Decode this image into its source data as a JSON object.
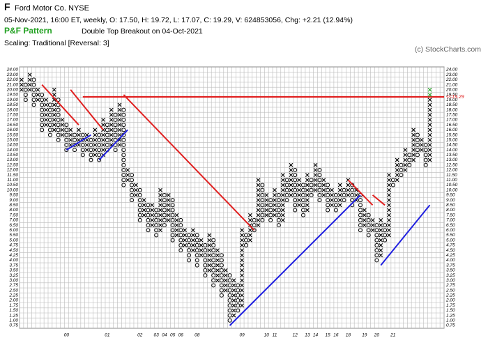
{
  "header": {
    "symbol": "F",
    "name": "Ford Motor Co.  NYSE",
    "quote": "05-Nov-2021, 16:00 ET, weekly, O: 17.50, H: 19.72, L: 17.07, C: 19.29, V: 624853056, Chg: +2.21 (12.94%)",
    "pattern_title": "P&F Pattern",
    "pattern": "Double Top Breakout on 04-Oct-2021",
    "scaling": "Scaling: Traditional [Reversal: 3]",
    "copyright": "(c) StockCharts.com"
  },
  "chart_data": {
    "type": "pnf",
    "first_column_type": "X",
    "slots": 104,
    "yticks": [
      {
        "value": 24,
        "label": "24.00"
      },
      {
        "value": 23,
        "label": "23.00"
      },
      {
        "value": 22,
        "label": "22.00"
      },
      {
        "value": 21,
        "label": "21.00"
      },
      {
        "value": 20,
        "label": "20.00"
      },
      {
        "value": 19.5,
        "label": "19.50"
      },
      {
        "value": 19,
        "label": "19.00"
      },
      {
        "value": 18.5,
        "label": "18.50"
      },
      {
        "value": 18,
        "label": "18.00"
      },
      {
        "value": 17.5,
        "label": "17.50"
      },
      {
        "value": 17,
        "label": "17.00"
      },
      {
        "value": 16.5,
        "label": "16.50"
      },
      {
        "value": 16,
        "label": "16.00"
      },
      {
        "value": 15.5,
        "label": "15.50"
      },
      {
        "value": 15,
        "label": "15.00"
      },
      {
        "value": 14.5,
        "label": "14.50"
      },
      {
        "value": 14,
        "label": "14.00"
      },
      {
        "value": 13.5,
        "label": "13.50"
      },
      {
        "value": 13,
        "label": "13.00"
      },
      {
        "value": 12.5,
        "label": "12.50"
      },
      {
        "value": 12,
        "label": "12.00"
      },
      {
        "value": 11.5,
        "label": "11.50"
      },
      {
        "value": 11,
        "label": "11.00"
      },
      {
        "value": 10.5,
        "label": "10.50"
      },
      {
        "value": 10,
        "label": "10.00"
      },
      {
        "value": 9.5,
        "label": "9.50"
      },
      {
        "value": 9,
        "label": "9.00"
      },
      {
        "value": 8.5,
        "label": "8.50"
      },
      {
        "value": 8,
        "label": "8.00"
      },
      {
        "value": 7.5,
        "label": "7.50"
      },
      {
        "value": 7,
        "label": "7.00"
      },
      {
        "value": 6.5,
        "label": "6.50"
      },
      {
        "value": 6,
        "label": "6.00"
      },
      {
        "value": 5.5,
        "label": "5.50"
      },
      {
        "value": 5,
        "label": "5.00"
      },
      {
        "value": 4.75,
        "label": "4.75"
      },
      {
        "value": 4.5,
        "label": "4.50"
      },
      {
        "value": 4.25,
        "label": "4.25"
      },
      {
        "value": 4,
        "label": "4.00"
      },
      {
        "value": 3.75,
        "label": "3.75"
      },
      {
        "value": 3.5,
        "label": "3.50"
      },
      {
        "value": 3.25,
        "label": "3.25"
      },
      {
        "value": 3,
        "label": "3.00"
      },
      {
        "value": 2.75,
        "label": "2.75"
      },
      {
        "value": 2.5,
        "label": "2.50"
      },
      {
        "value": 2.25,
        "label": "2.25"
      },
      {
        "value": 2,
        "label": "2.00"
      },
      {
        "value": 1.75,
        "label": "1.75"
      },
      {
        "value": 1.5,
        "label": "1.50"
      },
      {
        "value": 1.25,
        "label": "1.25"
      },
      {
        "value": 1,
        "label": "1.00"
      },
      {
        "value": 0.75,
        "label": "0.75"
      }
    ],
    "columns": [
      {
        "low": 20,
        "high": 22
      },
      {
        "low": 19,
        "high": 21
      },
      {
        "low": 20,
        "high": 23
      },
      {
        "low": 18.5,
        "high": 22
      },
      {
        "low": 19,
        "high": 20
      },
      {
        "low": 16,
        "high": 19.5
      },
      {
        "low": 16.5,
        "high": 19
      },
      {
        "low": 15.5,
        "high": 18.5
      },
      {
        "low": 16,
        "high": 20
      },
      {
        "low": 15,
        "high": 19
      },
      {
        "low": 15.5,
        "high": 17
      },
      {
        "low": 14,
        "high": 16.5
      },
      {
        "low": 14.5,
        "high": 16
      },
      {
        "low": 14,
        "high": 15.5
      },
      {
        "low": 14.5,
        "high": 16
      },
      {
        "low": 13.5,
        "high": 15.5
      },
      {
        "low": 14,
        "high": 15.5
      },
      {
        "low": 13,
        "high": 15
      },
      {
        "low": 13.5,
        "high": 16
      },
      {
        "low": 13,
        "high": 15.5
      },
      {
        "low": 13.5,
        "high": 17
      },
      {
        "low": 14,
        "high": 16.5
      },
      {
        "low": 14.5,
        "high": 18
      },
      {
        "low": 14,
        "high": 17.5
      },
      {
        "low": 14.5,
        "high": 18.5
      },
      {
        "low": 10.5,
        "high": 18
      },
      {
        "low": 11,
        "high": 12
      },
      {
        "low": 9,
        "high": 11.5
      },
      {
        "low": 9.5,
        "high": 10.5
      },
      {
        "low": 7,
        "high": 10
      },
      {
        "low": 7.5,
        "high": 9
      },
      {
        "low": 6,
        "high": 8.5
      },
      {
        "low": 6.5,
        "high": 8.5
      },
      {
        "low": 5.5,
        "high": 8
      },
      {
        "low": 6,
        "high": 10
      },
      {
        "low": 6.5,
        "high": 9.5
      },
      {
        "low": 7,
        "high": 9.5
      },
      {
        "low": 5,
        "high": 9
      },
      {
        "low": 5.5,
        "high": 7.5
      },
      {
        "low": 4.5,
        "high": 7
      },
      {
        "low": 4.75,
        "high": 6
      },
      {
        "low": 4,
        "high": 5.5
      },
      {
        "low": 4.5,
        "high": 6
      },
      {
        "low": 3.75,
        "high": 5.5
      },
      {
        "low": 4.25,
        "high": 5
      },
      {
        "low": 3.25,
        "high": 4.75
      },
      {
        "low": 3.5,
        "high": 5.5
      },
      {
        "low": 2.75,
        "high": 5
      },
      {
        "low": 3,
        "high": 4.5
      },
      {
        "low": 2.25,
        "high": 4.25
      },
      {
        "low": 2.5,
        "high": 3.5
      },
      {
        "low": 1,
        "high": 3.25
      },
      {
        "low": 1.25,
        "high": 3
      },
      {
        "low": 1.5,
        "high": 2.75
      },
      {
        "low": 1.75,
        "high": 6
      },
      {
        "low": 4.75,
        "high": 5.5
      },
      {
        "low": 5,
        "high": 7.5
      },
      {
        "low": 6,
        "high": 7
      },
      {
        "low": 6.5,
        "high": 11
      },
      {
        "low": 7,
        "high": 10.5
      },
      {
        "low": 7.5,
        "high": 9.5
      },
      {
        "low": 7,
        "high": 9
      },
      {
        "low": 7.5,
        "high": 10
      },
      {
        "low": 6.5,
        "high": 9.5
      },
      {
        "low": 7,
        "high": 11.5
      },
      {
        "low": 9,
        "high": 11
      },
      {
        "low": 9.5,
        "high": 12.5
      },
      {
        "low": 8,
        "high": 12
      },
      {
        "low": 8.5,
        "high": 11
      },
      {
        "low": 7.5,
        "high": 10.5
      },
      {
        "low": 8,
        "high": 11.5
      },
      {
        "low": 9.5,
        "high": 11
      },
      {
        "low": 10,
        "high": 12.5
      },
      {
        "low": 9,
        "high": 12
      },
      {
        "low": 9.5,
        "high": 11
      },
      {
        "low": 8,
        "high": 10.5
      },
      {
        "low": 8.5,
        "high": 10
      },
      {
        "low": 8,
        "high": 9.5
      },
      {
        "low": 8.5,
        "high": 10.5
      },
      {
        "low": 9,
        "high": 10
      },
      {
        "low": 9.5,
        "high": 11
      },
      {
        "low": 8.5,
        "high": 10.5
      },
      {
        "low": 9,
        "high": 10
      },
      {
        "low": 6,
        "high": 9.5
      },
      {
        "low": 6.5,
        "high": 8
      },
      {
        "low": 5.5,
        "high": 7.5
      },
      {
        "low": 6,
        "high": 7
      },
      {
        "low": 4,
        "high": 6.5
      },
      {
        "low": 4.25,
        "high": 7
      },
      {
        "low": 5,
        "high": 6.5
      },
      {
        "low": 5.5,
        "high": 11.5
      },
      {
        "low": 10.5,
        "high": 11
      },
      {
        "low": 11,
        "high": 13
      },
      {
        "low": 11.5,
        "high": 12.5
      },
      {
        "low": 12,
        "high": 14
      },
      {
        "low": 12.5,
        "high": 13.5
      },
      {
        "low": 13,
        "high": 16
      },
      {
        "low": 13.5,
        "high": 15.5
      },
      {
        "low": 14,
        "high": 15
      },
      {
        "low": 12.5,
        "high": 14.5
      },
      {
        "low": 13,
        "high": 20
      }
    ],
    "year_labels": [
      {
        "column": 11,
        "label": "00"
      },
      {
        "column": 21,
        "label": "01"
      },
      {
        "column": 29,
        "label": "02"
      },
      {
        "column": 33,
        "label": "03"
      },
      {
        "column": 35,
        "label": "04"
      },
      {
        "column": 37,
        "label": "05"
      },
      {
        "column": 39,
        "label": "06"
      },
      {
        "column": 43,
        "label": "08"
      },
      {
        "column": 54,
        "label": "09"
      },
      {
        "column": 60,
        "label": "10"
      },
      {
        "column": 62,
        "label": "11"
      },
      {
        "column": 67,
        "label": "12"
      },
      {
        "column": 70,
        "label": "13"
      },
      {
        "column": 72,
        "label": "14"
      },
      {
        "column": 75,
        "label": "15"
      },
      {
        "column": 77,
        "label": "16"
      },
      {
        "column": 80,
        "label": "18"
      },
      {
        "column": 84,
        "label": "19"
      },
      {
        "column": 87,
        "label": "20"
      },
      {
        "column": 91,
        "label": "21"
      }
    ],
    "trendlines": [
      {
        "color": "#e02020",
        "from": [
          5,
          21
        ],
        "to": [
          14,
          16.5
        ]
      },
      {
        "color": "#e02020",
        "from": [
          12,
          20
        ],
        "to": [
          20,
          16
        ]
      },
      {
        "color": "#e02020",
        "from": [
          25,
          19.5
        ],
        "to": [
          57,
          6
        ]
      },
      {
        "color": "#e02020",
        "from": [
          80,
          11
        ],
        "to": [
          86,
          8.5
        ]
      },
      {
        "color": "#e02020",
        "from": [
          86,
          9.5
        ],
        "to": [
          89,
          8.5
        ]
      },
      {
        "color": "#2020e0",
        "from": [
          11,
          14
        ],
        "to": [
          17,
          15.5
        ]
      },
      {
        "color": "#2020e0",
        "from": [
          19,
          13
        ],
        "to": [
          26,
          16
        ]
      },
      {
        "color": "#2020e0",
        "from": [
          51,
          0.75
        ],
        "to": [
          83,
          9.5
        ]
      },
      {
        "color": "#2020e0",
        "from": [
          88,
          3.75
        ],
        "to": [
          100,
          8.5
        ]
      }
    ],
    "last_price": {
      "value": 19.29,
      "label": "<<19.29",
      "color": "#e02020",
      "from_column": 15
    },
    "grid": true,
    "x_color": "#000000",
    "o_color": "#000000",
    "breakout_color": "#20a020"
  }
}
